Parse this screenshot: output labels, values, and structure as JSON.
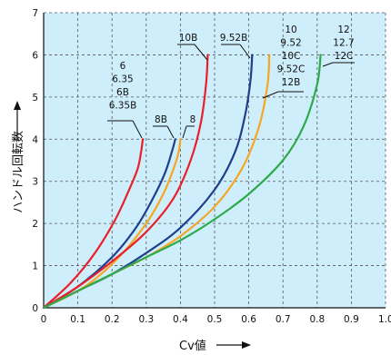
{
  "chart_data": {
    "type": "line",
    "xlabel": "Cv値",
    "ylabel": "ハンドル回転数",
    "xlim": [
      0,
      1.0
    ],
    "ylim": [
      0,
      7
    ],
    "x_ticks": [
      "0",
      "0.1",
      "0.2",
      "0.3",
      "0.4",
      "0.5",
      "0.6",
      "0.7",
      "0.8",
      "0.9",
      "1.0"
    ],
    "y_ticks": [
      "0",
      "1",
      "2",
      "3",
      "4",
      "5",
      "6",
      "7"
    ],
    "grid": true,
    "background": "#cfeefb",
    "series": [
      {
        "name": "6 6.35 6B 6.35B",
        "color": "#e8202a",
        "x": [
          0,
          0.08,
          0.15,
          0.21,
          0.25,
          0.275,
          0.285,
          0.29
        ],
        "y": [
          0,
          0.6,
          1.3,
          2.1,
          2.8,
          3.3,
          3.7,
          4.0
        ]
      },
      {
        "name": "8B",
        "color": "#1f3e8c",
        "x": [
          0,
          0.1,
          0.2,
          0.27,
          0.32,
          0.355,
          0.375,
          0.385
        ],
        "y": [
          0,
          0.5,
          1.2,
          1.9,
          2.6,
          3.2,
          3.7,
          4.0
        ]
      },
      {
        "name": "8",
        "color": "#f5a623",
        "x": [
          0,
          0.12,
          0.22,
          0.3,
          0.35,
          0.38,
          0.395,
          0.4
        ],
        "y": [
          0,
          0.5,
          1.2,
          2.0,
          2.7,
          3.3,
          3.7,
          4.0
        ]
      },
      {
        "name": "10B",
        "color": "#e8202a",
        "x": [
          0,
          0.1,
          0.2,
          0.3,
          0.38,
          0.43,
          0.46,
          0.475,
          0.48
        ],
        "y": [
          0,
          0.5,
          1.1,
          1.8,
          2.6,
          3.5,
          4.4,
          5.3,
          6.0
        ]
      },
      {
        "name": "9.52B",
        "color": "#1f3e8c",
        "x": [
          0,
          0.1,
          0.2,
          0.3,
          0.4,
          0.5,
          0.56,
          0.59,
          0.605,
          0.61
        ],
        "y": [
          0,
          0.4,
          0.8,
          1.3,
          1.9,
          2.8,
          3.7,
          4.6,
          5.4,
          6.0
        ]
      },
      {
        "name": "10 9.52 10C 9.52C 12B",
        "color": "#f5a623",
        "x": [
          0,
          0.1,
          0.2,
          0.3,
          0.4,
          0.5,
          0.58,
          0.63,
          0.655,
          0.66
        ],
        "y": [
          0,
          0.4,
          0.8,
          1.2,
          1.7,
          2.4,
          3.3,
          4.3,
          5.3,
          6.0
        ]
      },
      {
        "name": "12 12.7 12C",
        "color": "#2daa4a",
        "x": [
          0,
          0.1,
          0.2,
          0.3,
          0.4,
          0.5,
          0.6,
          0.7,
          0.76,
          0.8,
          0.81
        ],
        "y": [
          0,
          0.4,
          0.8,
          1.2,
          1.6,
          2.1,
          2.7,
          3.5,
          4.3,
          5.3,
          6.0
        ]
      }
    ],
    "labels": [
      {
        "text": [
          "6",
          "6.35",
          "6B",
          "6.35B"
        ],
        "anchor": [
          0.29,
          4.0
        ]
      },
      {
        "text": [
          "8B"
        ],
        "anchor": [
          0.385,
          4.0
        ]
      },
      {
        "text": [
          "8"
        ],
        "anchor": [
          0.4,
          4.0
        ]
      },
      {
        "text": [
          "10B"
        ],
        "anchor": [
          0.48,
          6.0
        ]
      },
      {
        "text": [
          "9.52B"
        ],
        "anchor": [
          0.61,
          6.0
        ]
      },
      {
        "text": [
          "10",
          "9.52",
          "10C",
          "9.52C",
          "12B"
        ],
        "anchor": [
          0.66,
          6.0
        ]
      },
      {
        "text": [
          "12",
          "12.7",
          "12C"
        ],
        "anchor": [
          0.81,
          6.0
        ]
      }
    ]
  }
}
